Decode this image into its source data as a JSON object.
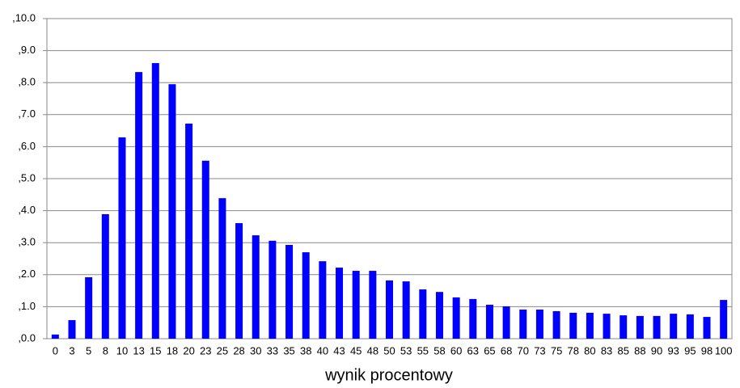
{
  "chart_data": {
    "type": "bar",
    "x_label": "wynik procentowy",
    "categories": [
      "0",
      "3",
      "5",
      "8",
      "10",
      "13",
      "15",
      "18",
      "20",
      "23",
      "25",
      "28",
      "30",
      "33",
      "35",
      "38",
      "40",
      "43",
      "45",
      "48",
      "50",
      "53",
      "55",
      "58",
      "60",
      "63",
      "65",
      "68",
      "70",
      "73",
      "75",
      "78",
      "80",
      "83",
      "85",
      "88",
      "90",
      "93",
      "95",
      "98",
      "100"
    ],
    "values": [
      0.13,
      0.58,
      1.92,
      3.89,
      6.29,
      8.33,
      8.61,
      7.95,
      6.72,
      5.56,
      4.39,
      3.61,
      3.23,
      3.06,
      2.93,
      2.7,
      2.42,
      2.22,
      2.12,
      2.12,
      1.82,
      1.79,
      1.54,
      1.46,
      1.29,
      1.24,
      1.06,
      1.01,
      0.91,
      0.91,
      0.86,
      0.81,
      0.81,
      0.78,
      0.73,
      0.71,
      0.71,
      0.78,
      0.76,
      0.68,
      1.21
    ],
    "color": "#0000ff",
    "ylim": [
      0,
      10
    ],
    "yticks": [
      {
        "value": 0,
        "label": ",0.0"
      },
      {
        "value": 1,
        "label": ",1.0"
      },
      {
        "value": 2,
        "label": ",2.0"
      },
      {
        "value": 3,
        "label": ",3.0"
      },
      {
        "value": 4,
        "label": ",4.0"
      },
      {
        "value": 5,
        "label": ",5.0"
      },
      {
        "value": 6,
        "label": ",6.0"
      },
      {
        "value": 7,
        "label": ",7.0"
      },
      {
        "value": 8,
        "label": ",8.0"
      },
      {
        "value": 9,
        "label": ",9.0"
      },
      {
        "value": 10,
        "label": ",10.0"
      }
    ],
    "grid": true
  }
}
